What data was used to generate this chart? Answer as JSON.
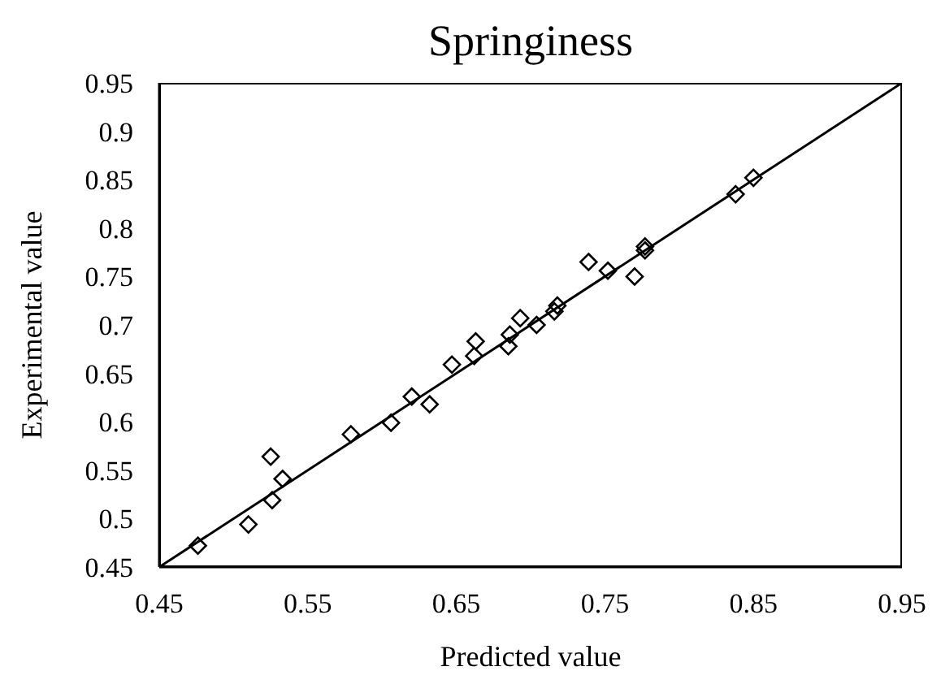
{
  "chart_data": {
    "type": "scatter",
    "title": "Springiness",
    "xlabel": "Predicted value",
    "ylabel": "Experimental value",
    "xlim": [
      0.45,
      0.95
    ],
    "xticks": [
      0.45,
      0.55,
      0.65,
      0.75,
      0.85,
      0.95
    ],
    "ylim": [
      0.45,
      0.95
    ],
    "yticks": [
      0.45,
      0.5,
      0.55,
      0.6,
      0.65,
      0.7,
      0.75,
      0.8,
      0.85,
      0.9,
      0.95
    ],
    "grid": false,
    "legend": false,
    "series": [
      {
        "type": "scatter",
        "marker": "diamond",
        "color": "#000000",
        "x": [
          0.476,
          0.51,
          0.525,
          0.526,
          0.533,
          0.579,
          0.606,
          0.62,
          0.632,
          0.647,
          0.663,
          0.662,
          0.685,
          0.686,
          0.693,
          0.704,
          0.716,
          0.718,
          0.739,
          0.752,
          0.77,
          0.777,
          0.777,
          0.838,
          0.85
        ],
        "values": [
          0.472,
          0.494,
          0.564,
          0.519,
          0.541,
          0.587,
          0.599,
          0.626,
          0.618,
          0.659,
          0.683,
          0.668,
          0.678,
          0.69,
          0.707,
          0.7,
          0.714,
          0.72,
          0.765,
          0.756,
          0.75,
          0.777,
          0.781,
          0.835,
          0.852
        ]
      },
      {
        "type": "line",
        "marker": "none",
        "line_style": "solid",
        "color": "#000000",
        "x": [
          0.45,
          0.95
        ],
        "values": [
          0.45,
          0.95
        ]
      }
    ]
  }
}
